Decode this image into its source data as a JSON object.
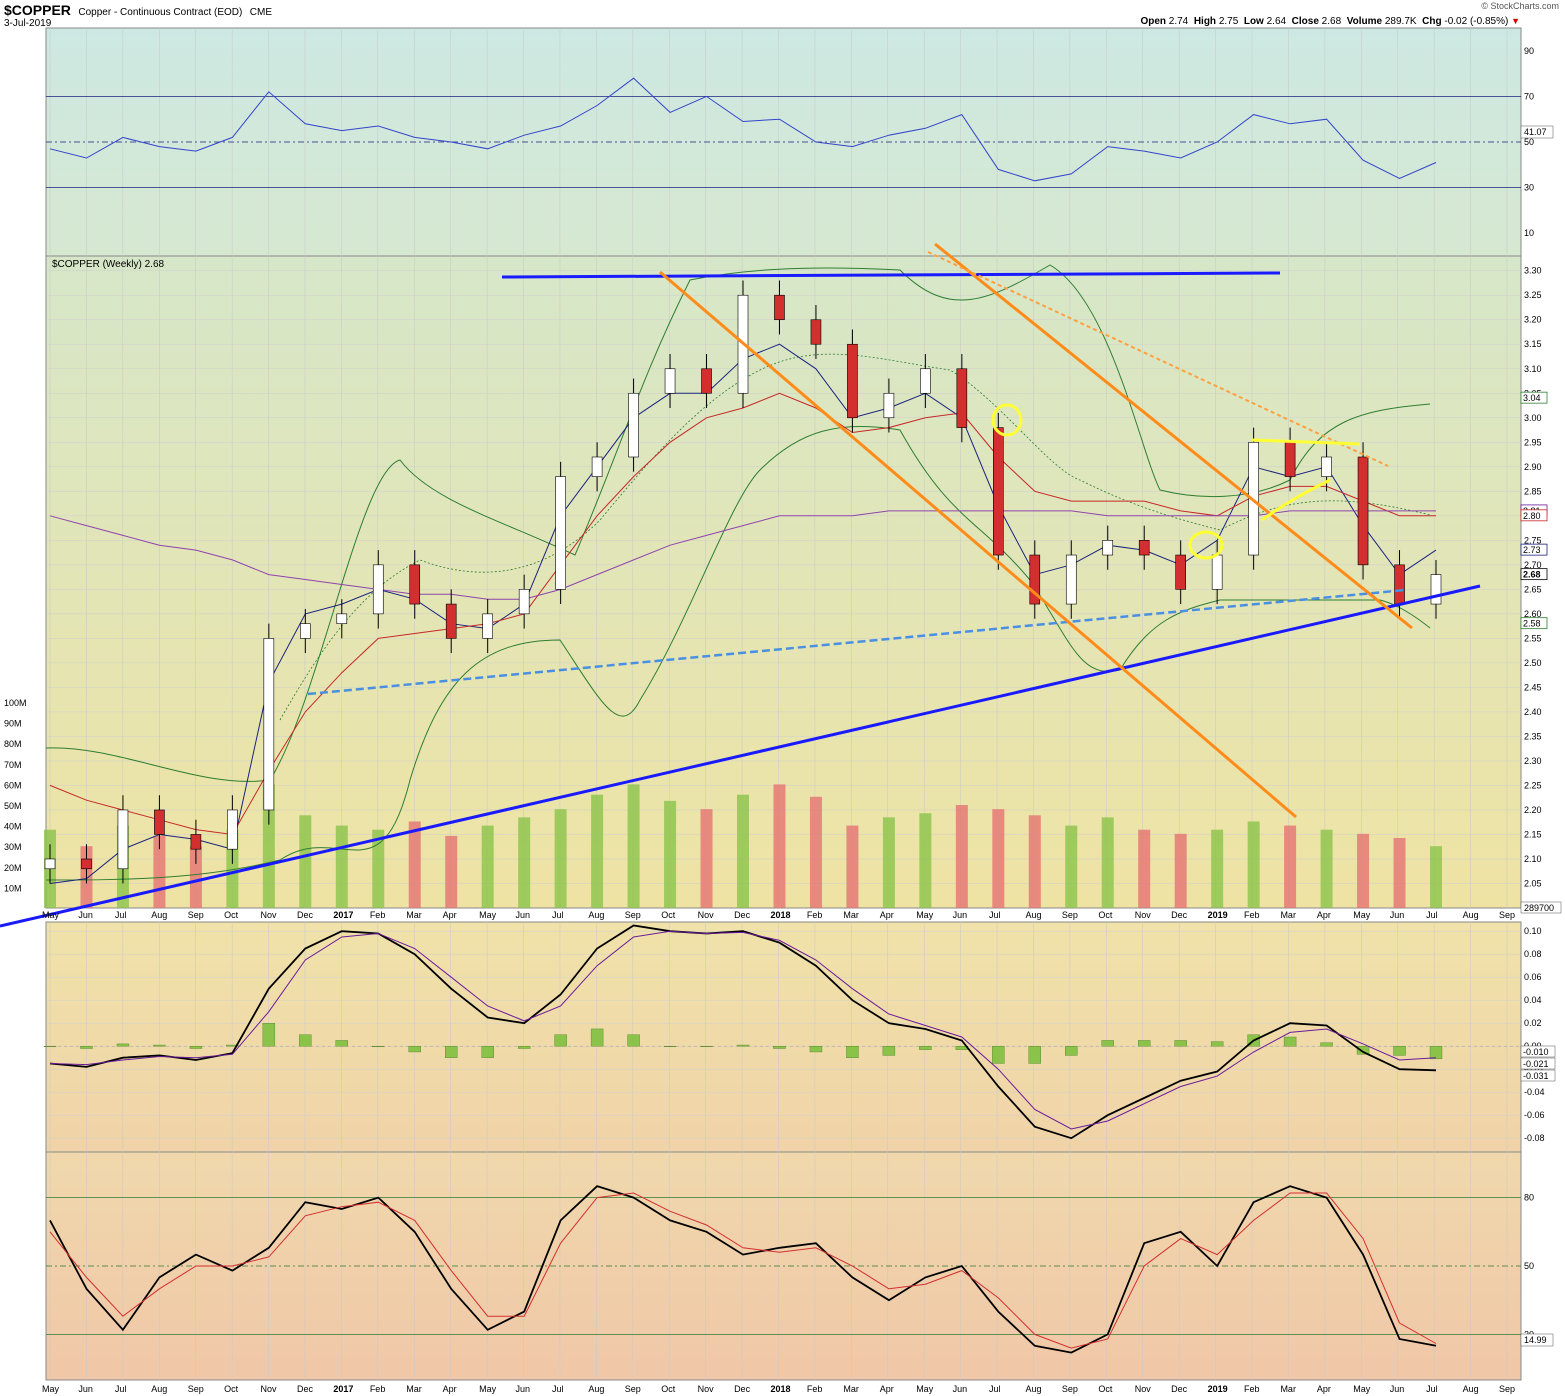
{
  "header": {
    "symbol": "$COPPER",
    "name": "Copper - Continuous Contract (EOD)",
    "exchange": "CME",
    "date": "3-Jul-2019",
    "open_label": "Open",
    "open": "2.74",
    "high_label": "High",
    "high": "2.75",
    "low_label": "Low",
    "low": "2.64",
    "close_label": "Close",
    "close": "2.68",
    "volume_label": "Volume",
    "volume": "289.7K",
    "chg_label": "Chg",
    "chg": "-0.02 (-0.85%)",
    "brand": "© StockCharts.com"
  },
  "chart_data": [
    {
      "type": "line",
      "panel": "RSI",
      "y_ticks": [
        "90",
        "70",
        "50",
        "30",
        "10"
      ],
      "ylim": [
        0,
        100
      ],
      "reference_lines": [
        70,
        50,
        30
      ],
      "last_value": "41.07",
      "x": [
        "2016-05",
        "2016-06",
        "2016-07",
        "2016-08",
        "2016-09",
        "2016-10",
        "2016-11",
        "2016-12",
        "2017-01",
        "2017-02",
        "2017-03",
        "2017-04",
        "2017-05",
        "2017-06",
        "2017-07",
        "2017-08",
        "2017-09",
        "2017-10",
        "2017-11",
        "2017-12",
        "2018-01",
        "2018-02",
        "2018-03",
        "2018-04",
        "2018-05",
        "2018-06",
        "2018-07",
        "2018-08",
        "2018-09",
        "2018-10",
        "2018-11",
        "2018-12",
        "2019-01",
        "2019-02",
        "2019-03",
        "2019-04",
        "2019-05",
        "2019-06",
        "2019-07"
      ],
      "values": [
        47,
        43,
        52,
        48,
        46,
        52,
        72,
        58,
        55,
        57,
        52,
        50,
        47,
        53,
        57,
        66,
        78,
        63,
        70,
        59,
        60,
        50,
        48,
        53,
        56,
        62,
        38,
        33,
        36,
        48,
        46,
        43,
        50,
        62,
        58,
        60,
        42,
        34,
        41
      ]
    },
    {
      "type": "line",
      "panel": "price",
      "title": "$COPPER (Weekly) 2.68",
      "y_ticks": [
        "3.30",
        "3.25",
        "3.20",
        "3.15",
        "3.10",
        "3.05",
        "3.00",
        "2.95",
        "2.90",
        "2.85",
        "2.80",
        "2.75",
        "2.70",
        "2.65",
        "2.60",
        "2.55",
        "2.50",
        "2.45",
        "2.40",
        "2.35",
        "2.30",
        "2.25",
        "2.20",
        "2.15",
        "2.10",
        "2.05"
      ],
      "ylim": [
        2.0,
        3.33
      ],
      "volume_ticks": [
        "100M",
        "90M",
        "80M",
        "70M",
        "60M",
        "50M",
        "40M",
        "30M",
        "20M",
        "10M"
      ],
      "volume_last": "289700",
      "badges": [
        {
          "value": "3.04",
          "color": "#2e7d32"
        },
        {
          "value": "2.81",
          "color": "#6a1b9a"
        },
        {
          "value": "2.80",
          "color": "#c62828"
        },
        {
          "value": "2.73",
          "color": "#1a237e"
        },
        {
          "value": "2.68",
          "color": "#000000"
        },
        {
          "value": "2.58",
          "color": "#2e7d32"
        }
      ],
      "x_labels": [
        "May",
        "Jun",
        "Jul",
        "Aug",
        "Sep",
        "Oct",
        "Nov",
        "Dec",
        "2017",
        "Feb",
        "Mar",
        "Apr",
        "May",
        "Jun",
        "Jul",
        "Aug",
        "Sep",
        "Oct",
        "Nov",
        "Dec",
        "2018",
        "Feb",
        "Mar",
        "Apr",
        "May",
        "Jun",
        "Jul",
        "Aug",
        "Sep",
        "Oct",
        "Nov",
        "Dec",
        "2019",
        "Feb",
        "Mar",
        "Apr",
        "May",
        "Jun",
        "Jul",
        "Aug",
        "Sep"
      ],
      "x": [
        "2016-05",
        "2016-06",
        "2016-07",
        "2016-08",
        "2016-09",
        "2016-10",
        "2016-11",
        "2016-12",
        "2017-01",
        "2017-02",
        "2017-03",
        "2017-04",
        "2017-05",
        "2017-06",
        "2017-07",
        "2017-08",
        "2017-09",
        "2017-10",
        "2017-11",
        "2017-12",
        "2018-01",
        "2018-02",
        "2018-03",
        "2018-04",
        "2018-05",
        "2018-06",
        "2018-07",
        "2018-08",
        "2018-09",
        "2018-10",
        "2018-11",
        "2018-12",
        "2019-01",
        "2019-02",
        "2019-03",
        "2019-04",
        "2019-05",
        "2019-06",
        "2019-07"
      ],
      "series": [
        {
          "type": "candlestick",
          "close": [
            2.1,
            2.08,
            2.2,
            2.15,
            2.12,
            2.2,
            2.55,
            2.58,
            2.6,
            2.7,
            2.62,
            2.55,
            2.6,
            2.65,
            2.88,
            2.92,
            3.05,
            3.1,
            3.05,
            3.25,
            3.2,
            3.15,
            3.0,
            3.05,
            3.1,
            2.98,
            2.72,
            2.62,
            2.72,
            2.75,
            2.72,
            2.65,
            2.72,
            2.95,
            2.88,
            2.92,
            2.7,
            2.62,
            2.68
          ]
        },
        {
          "name": "",
          "values": [
            2.05,
            2.06,
            2.12,
            2.15,
            2.14,
            2.12,
            2.46,
            2.6,
            2.62,
            2.65,
            2.63,
            2.58,
            2.57,
            2.62,
            2.8,
            2.9,
            3.0,
            3.05,
            3.05,
            3.12,
            3.15,
            3.1,
            3.0,
            3.02,
            3.05,
            3.0,
            2.82,
            2.68,
            2.7,
            2.74,
            2.73,
            2.7,
            2.75,
            2.9,
            2.88,
            2.9,
            2.78,
            2.68,
            2.73
          ],
          "color": "#1a237e"
        },
        {
          "name": "",
          "values": [
            2.25,
            2.22,
            2.2,
            2.18,
            2.16,
            2.15,
            2.28,
            2.4,
            2.48,
            2.55,
            2.56,
            2.57,
            2.58,
            2.6,
            2.7,
            2.8,
            2.88,
            2.95,
            3.0,
            3.02,
            3.05,
            3.02,
            2.97,
            2.98,
            3.0,
            3.01,
            2.92,
            2.85,
            2.83,
            2.83,
            2.83,
            2.81,
            2.8,
            2.84,
            2.86,
            2.86,
            2.83,
            2.8,
            2.8
          ],
          "color": "#c62828"
        },
        {
          "name": "",
          "values": [
            2.8,
            2.78,
            2.76,
            2.74,
            2.73,
            2.71,
            2.68,
            2.67,
            2.66,
            2.65,
            2.64,
            2.64,
            2.63,
            2.63,
            2.65,
            2.68,
            2.71,
            2.74,
            2.76,
            2.78,
            2.8,
            2.8,
            2.8,
            2.81,
            2.81,
            2.81,
            2.81,
            2.81,
            2.81,
            2.8,
            2.8,
            2.8,
            2.8,
            2.8,
            2.81,
            2.81,
            2.81,
            2.81,
            2.81
          ],
          "color": "#8e44ad"
        }
      ],
      "volume": [
        38,
        30,
        40,
        35,
        30,
        38,
        60,
        45,
        40,
        38,
        42,
        35,
        40,
        44,
        48,
        55,
        60,
        52,
        48,
        55,
        60,
        54,
        40,
        44,
        46,
        50,
        48,
        45,
        40,
        44,
        38,
        36,
        38,
        42,
        40,
        38,
        36,
        34,
        30
      ]
    },
    {
      "type": "line",
      "panel": "MACD",
      "y_ticks": [
        "0.10",
        "0.08",
        "0.06",
        "0.04",
        "0.02",
        "0.00",
        "-0.02",
        "-0.04",
        "-0.06",
        "-0.08"
      ],
      "ylim": [
        -0.092,
        0.108
      ],
      "badges": [
        "-0.010",
        "-0.021",
        "-0.031"
      ],
      "x": [
        "2016-05",
        "2016-06",
        "2016-07",
        "2016-08",
        "2016-09",
        "2016-10",
        "2016-11",
        "2016-12",
        "2017-01",
        "2017-02",
        "2017-03",
        "2017-04",
        "2017-05",
        "2017-06",
        "2017-07",
        "2017-08",
        "2017-09",
        "2017-10",
        "2017-11",
        "2017-12",
        "2018-01",
        "2018-02",
        "2018-03",
        "2018-04",
        "2018-05",
        "2018-06",
        "2018-07",
        "2018-08",
        "2018-09",
        "2018-10",
        "2018-11",
        "2018-12",
        "2019-01",
        "2019-02",
        "2019-03",
        "2019-04",
        "2019-05",
        "2019-06",
        "2019-07"
      ],
      "series": [
        {
          "name": "",
          "values": [
            -0.015,
            -0.018,
            -0.01,
            -0.008,
            -0.012,
            -0.006,
            0.05,
            0.085,
            0.1,
            0.098,
            0.08,
            0.05,
            0.025,
            0.02,
            0.045,
            0.085,
            0.105,
            0.1,
            0.098,
            0.1,
            0.09,
            0.07,
            0.04,
            0.02,
            0.015,
            0.005,
            -0.035,
            -0.07,
            -0.08,
            -0.06,
            -0.045,
            -0.03,
            -0.022,
            0.005,
            0.02,
            0.018,
            -0.005,
            -0.02,
            -0.021
          ],
          "color": "#000000"
        },
        {
          "name": "",
          "values": [
            -0.015,
            -0.016,
            -0.012,
            -0.009,
            -0.01,
            -0.007,
            0.03,
            0.075,
            0.095,
            0.098,
            0.085,
            0.06,
            0.035,
            0.022,
            0.035,
            0.07,
            0.095,
            0.1,
            0.098,
            0.099,
            0.092,
            0.075,
            0.05,
            0.028,
            0.018,
            0.008,
            -0.02,
            -0.055,
            -0.072,
            -0.065,
            -0.05,
            -0.035,
            -0.026,
            -0.005,
            0.012,
            0.015,
            0.002,
            -0.012,
            -0.01
          ],
          "color": "#6a1b9a"
        }
      ],
      "histogram": [
        0.0,
        -0.002,
        0.002,
        0.001,
        -0.002,
        0.001,
        0.02,
        0.01,
        0.005,
        0.0,
        -0.005,
        -0.01,
        -0.01,
        -0.002,
        0.01,
        0.015,
        0.01,
        0.0,
        0.0,
        0.001,
        -0.002,
        -0.005,
        -0.01,
        -0.008,
        -0.003,
        -0.003,
        -0.015,
        -0.015,
        -0.008,
        0.005,
        0.005,
        0.005,
        0.004,
        0.01,
        0.008,
        0.003,
        -0.007,
        -0.008,
        -0.011
      ]
    },
    {
      "type": "line",
      "panel": "Stochastic",
      "y_ticks": [
        "80",
        "50",
        "20"
      ],
      "ylim": [
        0,
        100
      ],
      "reference_lines": [
        80,
        50,
        20
      ],
      "last_value": "14.99",
      "x": [
        "2016-05",
        "2016-06",
        "2016-07",
        "2016-08",
        "2016-09",
        "2016-10",
        "2016-11",
        "2016-12",
        "2017-01",
        "2017-02",
        "2017-03",
        "2017-04",
        "2017-05",
        "2017-06",
        "2017-07",
        "2017-08",
        "2017-09",
        "2017-10",
        "2017-11",
        "2017-12",
        "2018-01",
        "2018-02",
        "2018-03",
        "2018-04",
        "2018-05",
        "2018-06",
        "2018-07",
        "2018-08",
        "2018-09",
        "2018-10",
        "2018-11",
        "2018-12",
        "2019-01",
        "2019-02",
        "2019-03",
        "2019-04",
        "2019-05",
        "2019-06",
        "2019-07"
      ],
      "series": [
        {
          "name": "",
          "values": [
            70,
            40,
            22,
            45,
            55,
            48,
            58,
            78,
            75,
            80,
            65,
            40,
            22,
            30,
            70,
            85,
            80,
            70,
            65,
            55,
            58,
            60,
            45,
            35,
            45,
            50,
            30,
            15,
            12,
            20,
            60,
            65,
            50,
            78,
            85,
            80,
            55,
            18,
            15
          ],
          "color": "#000000"
        },
        {
          "name": "",
          "values": [
            65,
            45,
            28,
            40,
            50,
            50,
            54,
            72,
            76,
            78,
            70,
            48,
            28,
            28,
            60,
            80,
            82,
            74,
            68,
            58,
            56,
            58,
            50,
            40,
            42,
            48,
            36,
            20,
            14,
            18,
            50,
            62,
            55,
            70,
            82,
            82,
            62,
            25,
            16
          ],
          "color": "#d32f2f"
        }
      ]
    }
  ],
  "x_axis_labels": [
    "May",
    "Jun",
    "Jul",
    "Aug",
    "Sep",
    "Oct",
    "Nov",
    "Dec",
    "2017",
    "Feb",
    "Mar",
    "Apr",
    "May",
    "Jun",
    "Jul",
    "Aug",
    "Sep",
    "Oct",
    "Nov",
    "Dec",
    "2018",
    "Feb",
    "Mar",
    "Apr",
    "May",
    "Jun",
    "Jul",
    "Aug",
    "Sep",
    "Oct",
    "Nov",
    "Dec",
    "2019",
    "Feb",
    "Mar",
    "Apr",
    "May",
    "Jun",
    "Jul",
    "Aug",
    "Sep"
  ],
  "colors": {
    "up_candle": "#ffffff",
    "down_candle": "#d32f2f",
    "volume_up": "#8bc34a",
    "volume_down": "#e57373",
    "trendline_blue": "#1a1aff",
    "channel_orange": "#ff8c1a",
    "dashed_support": "#4a90e2",
    "circle_highlight": "#ffff33"
  }
}
